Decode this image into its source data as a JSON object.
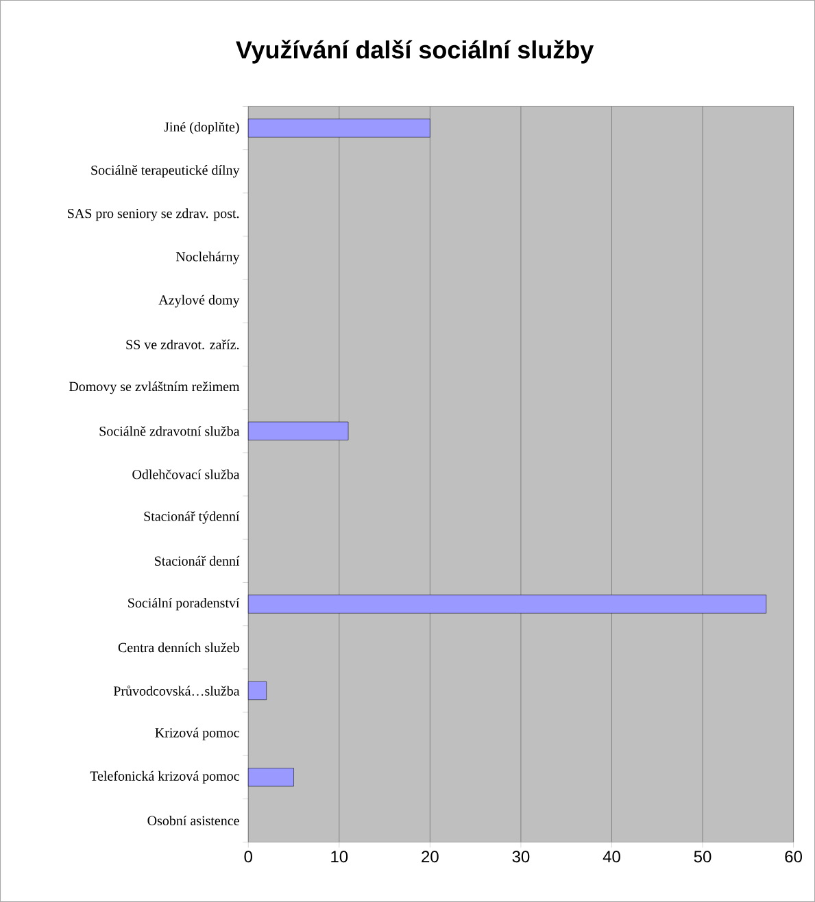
{
  "chart_data": {
    "type": "bar",
    "orientation": "horizontal",
    "title": "Využívání další sociální služby",
    "categories": [
      "Jiné (doplňte)",
      "Sociálně terapeutické dílny",
      "SAS pro seniory se zdrav. post.",
      "Noclehárny",
      "Azylové domy",
      "SS ve zdravot. zaříz.",
      "Domovy se zvláštním režimem",
      "Sociálně zdravotní služba",
      "Odlehčovací služba",
      "Stacionář týdenní",
      "Stacionář denní",
      "Sociální poradenství",
      "Centra denních služeb",
      "Průvodcovská…služba",
      "Krizová pomoc",
      "Telefonická krizová pomoc",
      "Osobní asistence"
    ],
    "values": [
      20,
      0,
      0,
      0,
      0,
      0,
      0,
      11,
      0,
      0,
      0,
      57,
      0,
      2,
      0,
      5,
      0
    ],
    "color": "#9999ff",
    "xlim": [
      0,
      60
    ],
    "xticks": [
      0,
      10,
      20,
      30,
      40,
      50,
      60
    ],
    "grid": "x"
  }
}
